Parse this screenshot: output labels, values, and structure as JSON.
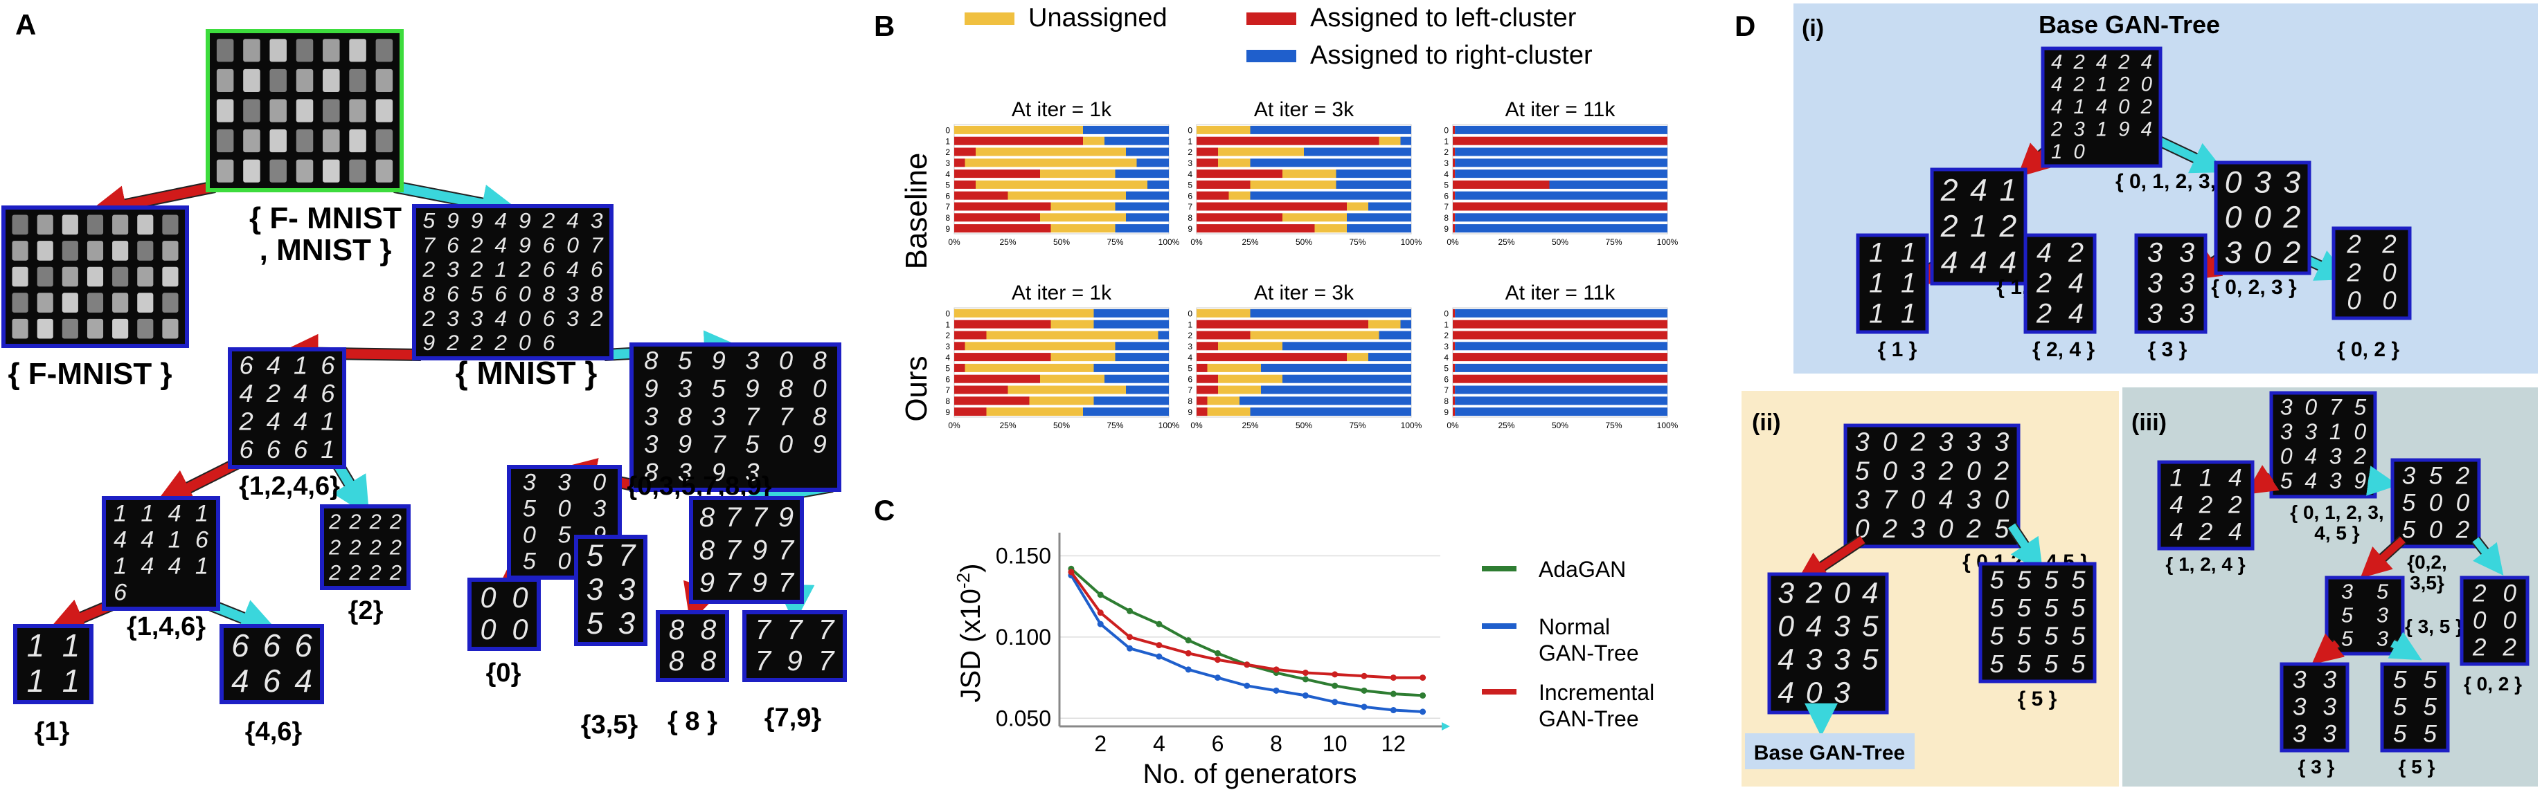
{
  "panels": {
    "a": "A",
    "b": "B",
    "c": "C",
    "d": "D"
  },
  "tree_a": {
    "nodes": [
      {
        "id": "root",
        "label": "{ F- MNIST\n, MNIST }",
        "kind": "mixed",
        "border": "#3ddc3d"
      },
      {
        "id": "fm",
        "label": "{ F-MNIST }",
        "kind": "fashion",
        "border": "#1d1fc4"
      },
      {
        "id": "mn",
        "label": "{ MNIST }",
        "kind": "digits",
        "digits": "5994924376249607232126468656083823340632922206",
        "border": "#1d1fc4"
      },
      {
        "id": "d1246",
        "label": "{1,2,4,6}",
        "kind": "digits",
        "digits": "6416424624416661",
        "border": "#1d1fc4"
      },
      {
        "id": "d035789",
        "label": "{0,3,5,7,8,9}",
        "kind": "digits",
        "digits": "8593089359803837783975098393",
        "border": "#1d1fc4"
      },
      {
        "id": "d146",
        "label": "{1,4,6}",
        "kind": "digits",
        "digits": "1141441614416",
        "border": "#1d1fc4"
      },
      {
        "id": "d2",
        "label": "{2}",
        "kind": "digits",
        "digits": "222222222222",
        "border": "#1d1fc4"
      },
      {
        "id": "d035",
        "label": "",
        "kind": "digits",
        "digits": "330503059500",
        "border": "#1d1fc4"
      },
      {
        "id": "d789",
        "label": "",
        "kind": "digits",
        "digits": "877987979797",
        "border": "#1d1fc4"
      },
      {
        "id": "d1",
        "label": "{1}",
        "kind": "digits",
        "digits": "1111",
        "border": "#1d1fc4"
      },
      {
        "id": "d46",
        "label": "{4,6}",
        "kind": "digits",
        "digits": "666464",
        "border": "#1d1fc4"
      },
      {
        "id": "d0",
        "label": "{0}",
        "kind": "digits",
        "digits": "0000",
        "border": "#1d1fc4"
      },
      {
        "id": "d35",
        "label": "{3,5}",
        "kind": "digits",
        "digits": "573353",
        "border": "#1d1fc4"
      },
      {
        "id": "d8",
        "label": "{ 8 }",
        "kind": "digits",
        "digits": "8888",
        "border": "#1d1fc4"
      },
      {
        "id": "d79",
        "label": "{7,9}",
        "kind": "digits",
        "digits": "777797",
        "border": "#1d1fc4"
      }
    ],
    "edges": [
      [
        "root",
        "fm",
        "left"
      ],
      [
        "root",
        "mn",
        "right"
      ],
      [
        "mn",
        "d1246",
        "left"
      ],
      [
        "mn",
        "d035789",
        "right"
      ],
      [
        "d1246",
        "d146",
        "left"
      ],
      [
        "d1246",
        "d2",
        "right"
      ],
      [
        "d035789",
        "d035",
        "left"
      ],
      [
        "d035789",
        "d789",
        "right"
      ],
      [
        "d146",
        "d1",
        "left"
      ],
      [
        "d146",
        "d46",
        "right"
      ],
      [
        "d035",
        "d0",
        "left"
      ],
      [
        "d035",
        "d35",
        "right"
      ],
      [
        "d789",
        "d8",
        "left"
      ],
      [
        "d789",
        "d79",
        "right"
      ]
    ]
  },
  "legend_b": {
    "items": [
      {
        "label": "Unassigned",
        "color": "#f0c040"
      },
      {
        "label": "Assigned to left-cluster",
        "color": "#cc1f1f"
      },
      {
        "label": "Assigned to right-cluster",
        "color": "#1f5fcc"
      }
    ]
  },
  "panel_b": {
    "row_labels": [
      "Baseline",
      "Ours"
    ],
    "column_titles": [
      "At iter = 1k",
      "At iter = 3k",
      "At iter = 11k"
    ],
    "y_ticks": [
      "0",
      "1",
      "2",
      "3",
      "4",
      "5",
      "6",
      "7",
      "8",
      "9"
    ],
    "x_ticks": [
      "0%",
      "25%",
      "50%",
      "75%",
      "100%"
    ]
  },
  "chart_data": [
    {
      "type": "bar",
      "stacked": true,
      "orientation": "horizontal",
      "row": "Baseline",
      "title": "At iter = 1k",
      "categories": [
        "0",
        "1",
        "2",
        "3",
        "4",
        "5",
        "6",
        "7",
        "8",
        "9"
      ],
      "series": [
        {
          "name": "Assigned to left-cluster",
          "values": [
            0,
            60,
            10,
            5,
            40,
            10,
            25,
            45,
            40,
            45
          ]
        },
        {
          "name": "Unassigned",
          "values": [
            60,
            10,
            70,
            80,
            35,
            80,
            55,
            30,
            40,
            30
          ]
        },
        {
          "name": "Assigned to right-cluster",
          "values": [
            40,
            30,
            20,
            15,
            25,
            10,
            20,
            25,
            20,
            25
          ]
        }
      ],
      "xlim": [
        0,
        100
      ]
    },
    {
      "type": "bar",
      "stacked": true,
      "orientation": "horizontal",
      "row": "Baseline",
      "title": "At iter = 3k",
      "categories": [
        "0",
        "1",
        "2",
        "3",
        "4",
        "5",
        "6",
        "7",
        "8",
        "9"
      ],
      "series": [
        {
          "name": "Assigned to left-cluster",
          "values": [
            0,
            85,
            10,
            10,
            40,
            25,
            15,
            70,
            40,
            55
          ]
        },
        {
          "name": "Unassigned",
          "values": [
            25,
            10,
            40,
            15,
            25,
            40,
            10,
            10,
            30,
            15
          ]
        },
        {
          "name": "Assigned to right-cluster",
          "values": [
            75,
            5,
            50,
            75,
            35,
            35,
            75,
            20,
            30,
            30
          ]
        }
      ],
      "xlim": [
        0,
        100
      ]
    },
    {
      "type": "bar",
      "stacked": true,
      "orientation": "horizontal",
      "row": "Baseline",
      "title": "At iter = 11k",
      "categories": [
        "0",
        "1",
        "2",
        "3",
        "4",
        "5",
        "6",
        "7",
        "8",
        "9"
      ],
      "series": [
        {
          "name": "Assigned to left-cluster",
          "values": [
            1,
            100,
            1,
            1,
            1,
            45,
            1,
            100,
            1,
            1
          ]
        },
        {
          "name": "Unassigned",
          "values": [
            0,
            0,
            0,
            0,
            0,
            0,
            0,
            0,
            0,
            0
          ]
        },
        {
          "name": "Assigned to right-cluster",
          "values": [
            99,
            0,
            99,
            99,
            99,
            55,
            99,
            0,
            99,
            99
          ]
        }
      ],
      "xlim": [
        0,
        100
      ]
    },
    {
      "type": "bar",
      "stacked": true,
      "orientation": "horizontal",
      "row": "Ours",
      "title": "At iter = 1k",
      "categories": [
        "0",
        "1",
        "2",
        "3",
        "4",
        "5",
        "6",
        "7",
        "8",
        "9"
      ],
      "series": [
        {
          "name": "Assigned to left-cluster",
          "values": [
            0,
            45,
            15,
            5,
            45,
            5,
            40,
            25,
            35,
            15
          ]
        },
        {
          "name": "Unassigned",
          "values": [
            65,
            20,
            80,
            70,
            30,
            60,
            30,
            55,
            30,
            45
          ]
        },
        {
          "name": "Assigned to right-cluster",
          "values": [
            35,
            35,
            5,
            25,
            25,
            35,
            30,
            20,
            35,
            40
          ]
        }
      ],
      "xlim": [
        0,
        100
      ]
    },
    {
      "type": "bar",
      "stacked": true,
      "orientation": "horizontal",
      "row": "Ours",
      "title": "At iter = 3k",
      "categories": [
        "0",
        "1",
        "2",
        "3",
        "4",
        "5",
        "6",
        "7",
        "8",
        "9"
      ],
      "series": [
        {
          "name": "Assigned to left-cluster",
          "values": [
            0,
            80,
            25,
            10,
            70,
            5,
            10,
            10,
            5,
            5
          ]
        },
        {
          "name": "Unassigned",
          "values": [
            25,
            15,
            60,
            30,
            10,
            25,
            30,
            20,
            15,
            20
          ]
        },
        {
          "name": "Assigned to right-cluster",
          "values": [
            75,
            5,
            15,
            60,
            20,
            70,
            60,
            70,
            80,
            75
          ]
        }
      ],
      "xlim": [
        0,
        100
      ]
    },
    {
      "type": "bar",
      "stacked": true,
      "orientation": "horizontal",
      "row": "Ours",
      "title": "At iter = 11k",
      "categories": [
        "0",
        "1",
        "2",
        "3",
        "4",
        "5",
        "6",
        "7",
        "8",
        "9"
      ],
      "series": [
        {
          "name": "Assigned to left-cluster",
          "values": [
            1,
            100,
            100,
            1,
            100,
            1,
            100,
            1,
            1,
            1
          ]
        },
        {
          "name": "Unassigned",
          "values": [
            0,
            0,
            0,
            0,
            0,
            0,
            0,
            0,
            0,
            0
          ]
        },
        {
          "name": "Assigned to right-cluster",
          "values": [
            99,
            0,
            0,
            99,
            0,
            99,
            0,
            99,
            99,
            99
          ]
        }
      ],
      "xlim": [
        0,
        100
      ]
    },
    {
      "type": "line",
      "title": "",
      "xlabel": "No. of generators",
      "ylabel": "JSD (x10",
      "ylabel_sup": "-2",
      "ylabel_close": ")",
      "x": [
        1,
        2,
        3,
        4,
        5,
        6,
        7,
        8,
        9,
        10,
        11,
        12,
        13
      ],
      "xticks": [
        "2",
        "4",
        "6",
        "8",
        "10",
        "12"
      ],
      "xtick_values": [
        2,
        4,
        6,
        8,
        10,
        12
      ],
      "yticks": [
        "0.150",
        "0.100",
        "0.050"
      ],
      "ytick_values": [
        0.15,
        0.1,
        0.05
      ],
      "xlim": [
        0.6,
        13.6
      ],
      "ylim": [
        0.045,
        0.16
      ],
      "series": [
        {
          "name": "AdaGAN",
          "color": "#2e7d32",
          "values": [
            0.142,
            0.126,
            0.116,
            0.108,
            0.098,
            0.09,
            0.083,
            0.078,
            0.074,
            0.07,
            0.067,
            0.065,
            0.064
          ]
        },
        {
          "name": "Normal\nGAN-Tree",
          "color": "#1f5fcc",
          "values": [
            0.138,
            0.108,
            0.093,
            0.088,
            0.08,
            0.075,
            0.07,
            0.067,
            0.064,
            0.06,
            0.057,
            0.055,
            0.054
          ]
        },
        {
          "name": "Incremental\nGAN-Tree",
          "color": "#cc1f1f",
          "values": [
            0.14,
            0.115,
            0.1,
            0.095,
            0.09,
            0.086,
            0.083,
            0.08,
            0.078,
            0.077,
            0.076,
            0.075,
            0.075
          ]
        }
      ]
    }
  ],
  "panel_d": {
    "sub_i": {
      "tag": "(i)",
      "title": "Base GAN-Tree",
      "nodes": [
        {
          "id": "r",
          "label": "{ 0, 1, 2, 3, 4 }",
          "digits": "4242442120414022319410"
        },
        {
          "id": "l",
          "label": "{ 1, 2, 4 }",
          "digits": "241212444"
        },
        {
          "id": "r2",
          "label": "{ 0, 2, 3 }",
          "digits": "033002302"
        },
        {
          "id": "ll",
          "label": "{ 1 }",
          "digits": "111111"
        },
        {
          "id": "lr",
          "label": "{ 2, 4 }",
          "digits": "422424"
        },
        {
          "id": "rl",
          "label": "{ 3 }",
          "digits": "333333"
        },
        {
          "id": "rr",
          "label": "{ 0, 2 }",
          "digits": "222000"
        }
      ]
    },
    "sub_ii": {
      "tag": "(ii)",
      "root_label": "{ 0,1,2,3,4,5 }",
      "root_digits": "302333503202370430023025",
      "left_digits": "320404354335403",
      "right_label": "{ 5 }",
      "right_digits": "5555555555555555",
      "base_label": "Base GAN-Tree"
    },
    "sub_iii": {
      "tag": "(iii)",
      "root_label": "{ 0, 1, 2, 3,\n 4, 5 }",
      "root_digits": "3075331004325439",
      "a_label": "{ 1, 2, 4 }",
      "a_digits": "114422424",
      "b_label": "{0,2,\n3,5}",
      "b_digits": "352500502",
      "c_label": "{ 3, 5 }",
      "c_digits": "355353",
      "d_label": "{ 0, 2 }",
      "d_digits": "200022",
      "e_label": "{ 3 }",
      "e_digits": "333333",
      "f_label": "{ 5 }",
      "f_digits": "555555"
    }
  }
}
